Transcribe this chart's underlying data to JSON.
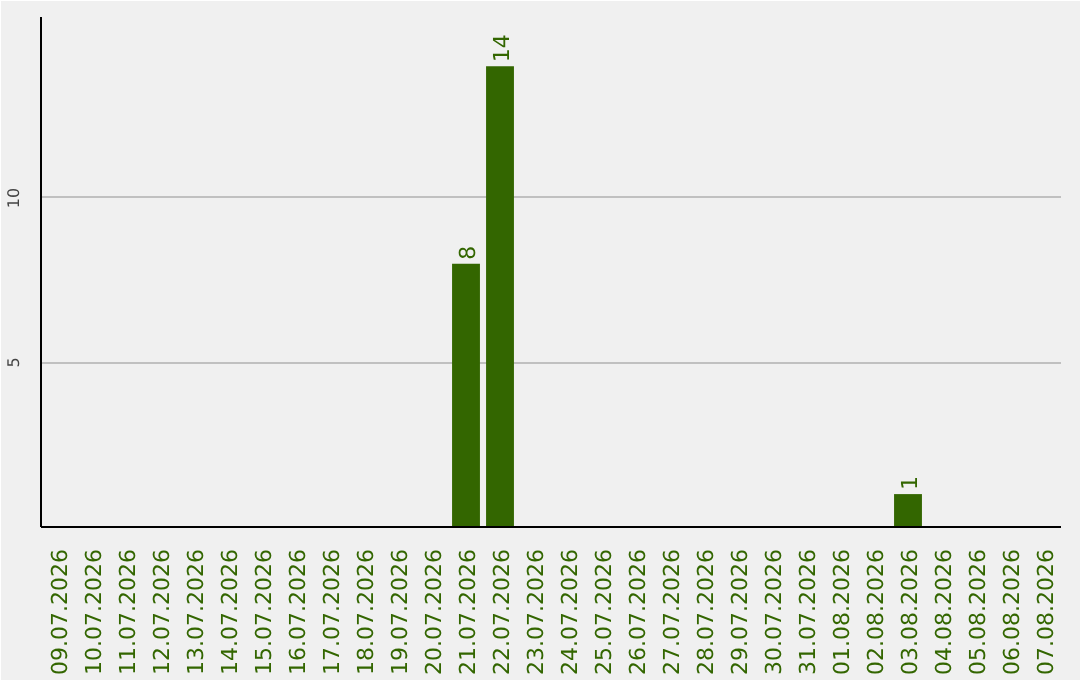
{
  "chart_data": {
    "type": "bar",
    "categories": [
      "09.07.2026",
      "10.07.2026",
      "11.07.2026",
      "12.07.2026",
      "13.07.2026",
      "14.07.2026",
      "15.07.2026",
      "16.07.2026",
      "17.07.2026",
      "18.07.2026",
      "19.07.2026",
      "20.07.2026",
      "21.07.2026",
      "22.07.2026",
      "23.07.2026",
      "24.07.2026",
      "25.07.2026",
      "26.07.2026",
      "27.07.2026",
      "28.07.2026",
      "29.07.2026",
      "30.07.2026",
      "31.07.2026",
      "01.08.2026",
      "02.08.2026",
      "03.08.2026",
      "04.08.2026",
      "05.08.2026",
      "06.08.2026",
      "07.08.2026"
    ],
    "values": [
      0,
      0,
      0,
      0,
      0,
      0,
      0,
      0,
      0,
      0,
      0,
      0,
      8,
      14,
      0,
      0,
      0,
      0,
      0,
      0,
      0,
      0,
      0,
      0,
      0,
      1,
      0,
      0,
      0,
      0
    ],
    "value_labels": [
      null,
      null,
      null,
      null,
      null,
      null,
      null,
      null,
      null,
      null,
      null,
      null,
      "8",
      "14",
      null,
      null,
      null,
      null,
      null,
      null,
      null,
      null,
      null,
      null,
      null,
      "1",
      null,
      null,
      null,
      null
    ],
    "color": "#336600",
    "ylim": [
      0,
      15.5
    ],
    "yticks": [
      5,
      10
    ],
    "grid": "y"
  }
}
